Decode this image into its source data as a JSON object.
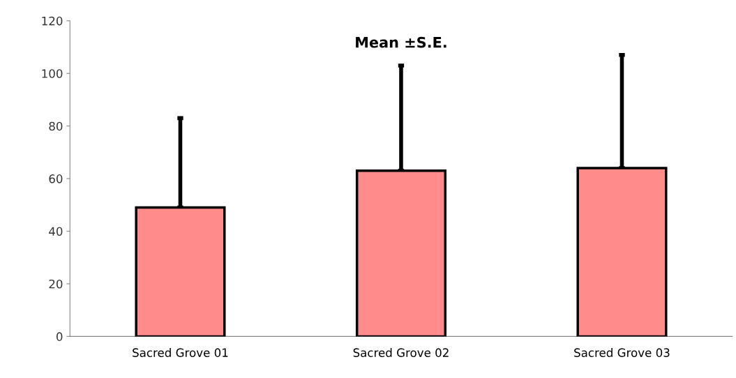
{
  "chart_data": {
    "type": "bar",
    "title": "Mean ±S.E.",
    "categories": [
      "Sacred Grove 01",
      "Sacred Grove 02",
      "Sacred Grove 03"
    ],
    "values": [
      49,
      63,
      64
    ],
    "errors": [
      [
        49,
        83
      ],
      [
        63,
        103
      ],
      [
        64,
        107
      ]
    ],
    "color": "#ff8b8b",
    "ylim": [
      0,
      120
    ],
    "yticks": [
      0,
      20,
      40,
      60,
      80,
      100,
      120
    ],
    "grid": false,
    "legend": false
  }
}
